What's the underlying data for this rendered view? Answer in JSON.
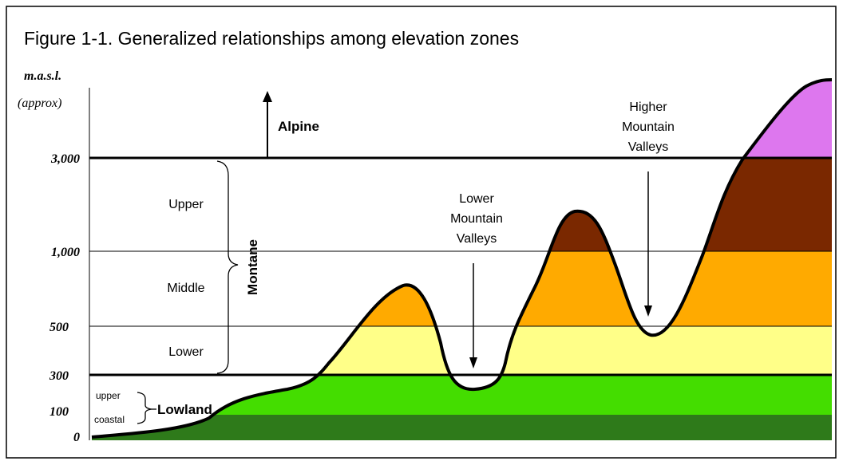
{
  "title": "Figure 1-1. Generalized relationships among elevation zones",
  "axis": {
    "unit": "m.a.s.l.",
    "note": "(approx)",
    "labels": [
      "3,000",
      "1,000",
      "500",
      "300",
      "100",
      "0"
    ]
  },
  "zones": {
    "alpine": "Alpine",
    "montane": "Montane",
    "montane_parts": [
      "Upper",
      "Middle",
      "Lower"
    ],
    "lowland": "Lowland",
    "lowland_parts": [
      "upper",
      "coastal"
    ]
  },
  "valleys": {
    "lower": [
      "Lower",
      "Mountain",
      "Valleys"
    ],
    "higher": [
      "Higher",
      "Mountain",
      "Valleys"
    ]
  }
}
